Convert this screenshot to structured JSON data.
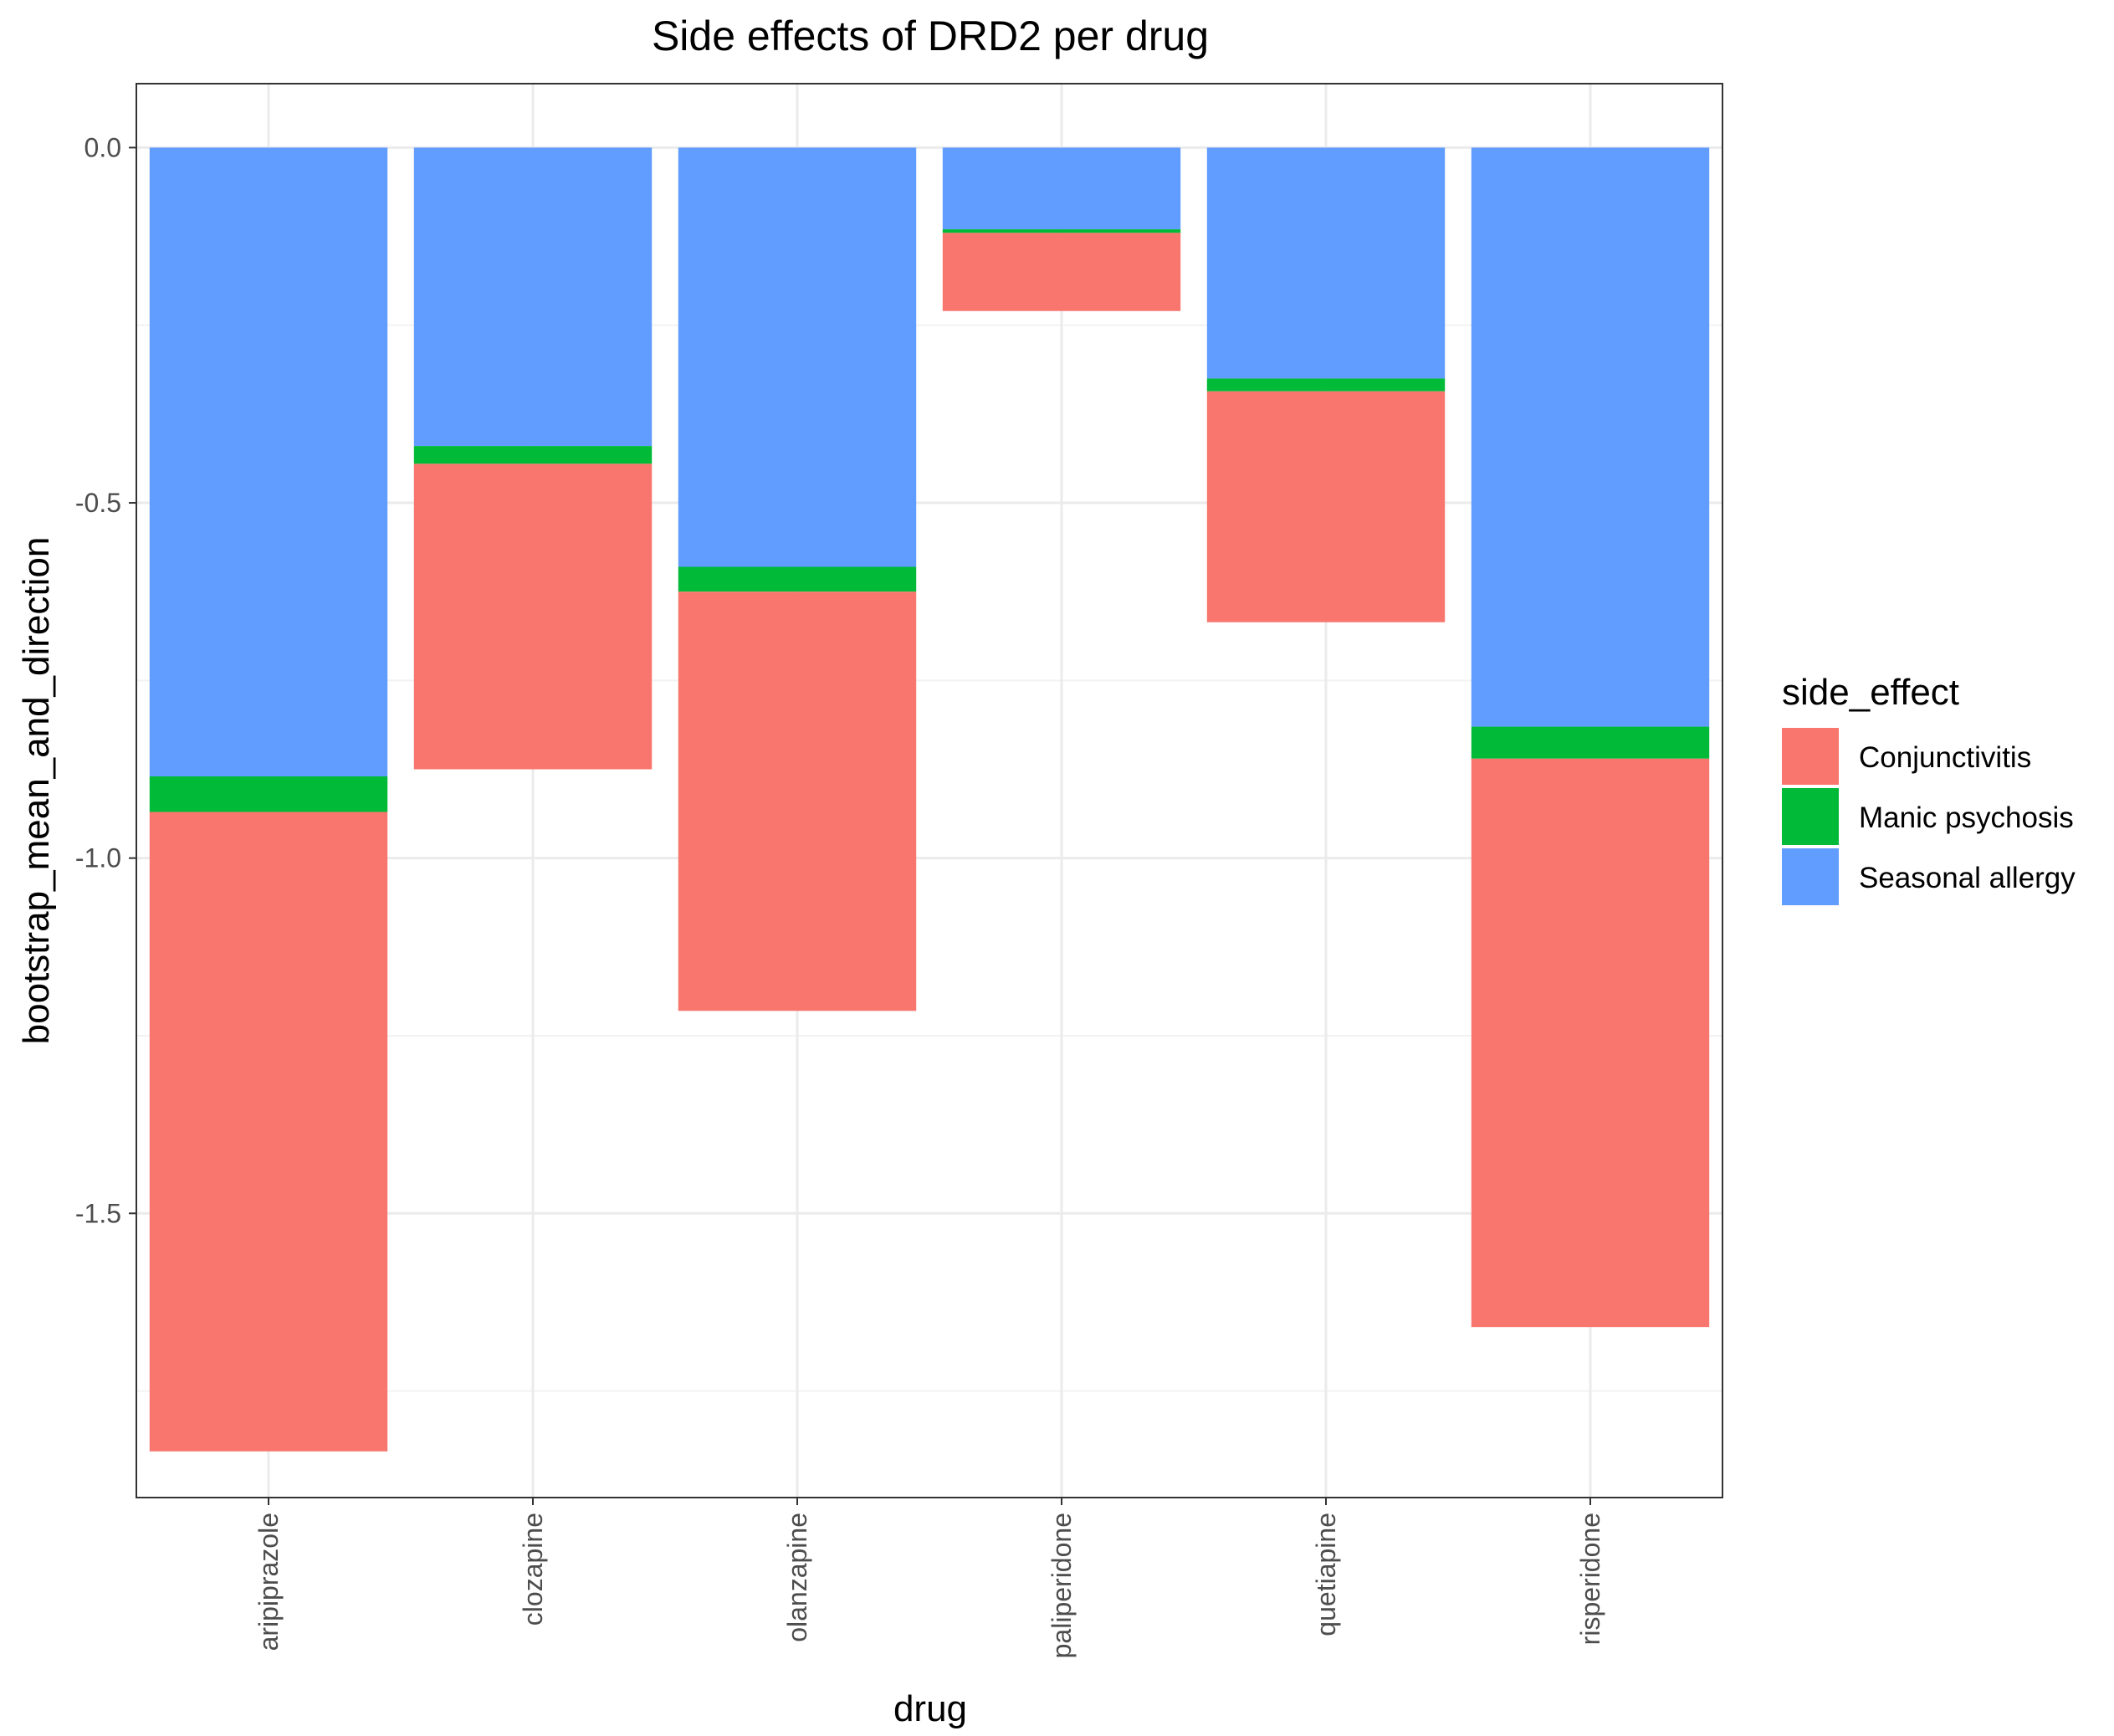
{
  "chart_data": {
    "type": "bar",
    "stacked": true,
    "title": "Side effects of DRD2 per drug",
    "xlabel": "drug",
    "ylabel": "bootstrap_mean_and_direction",
    "categories": [
      "aripiprazole",
      "clozapine",
      "olanzapine",
      "paliperidone",
      "quetiapine",
      "risperidone"
    ],
    "ylim": [
      -1.9,
      0.09
    ],
    "yticks": [
      0.0,
      -0.5,
      -1.0,
      -1.5
    ],
    "ytick_labels": [
      "0.0",
      "-0.5",
      "-1.0",
      "-1.5"
    ],
    "grid": true,
    "legend": {
      "title": "side_effect",
      "position": "right"
    },
    "stack_order": [
      "Seasonal allergy",
      "Manic psychosis",
      "Conjunctivitis"
    ],
    "series": [
      {
        "name": "Conjunctivitis",
        "color": "#F8766D",
        "values": [
          -0.9,
          -0.43,
          -0.59,
          -0.11,
          -0.325,
          -0.8
        ]
      },
      {
        "name": "Manic psychosis",
        "color": "#00BA38",
        "values": [
          -0.05,
          -0.025,
          -0.035,
          -0.005,
          -0.018,
          -0.045
        ]
      },
      {
        "name": "Seasonal allergy",
        "color": "#619CFF",
        "values": [
          -0.885,
          -0.42,
          -0.59,
          -0.115,
          -0.325,
          -0.815
        ]
      }
    ]
  }
}
